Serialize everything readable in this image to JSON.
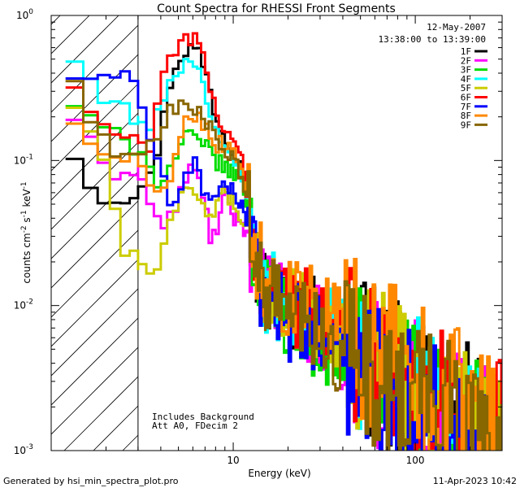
{
  "chart_data": {
    "type": "line",
    "title": "Count Spectra for RHESSI Front Segments",
    "xlabel": "Energy (keV)",
    "ylabel": "counts cm^-2 s^-1 keV^-1",
    "xscale": "log",
    "yscale": "log",
    "xlim": [
      1,
      300
    ],
    "ylim": [
      0.001,
      1
    ],
    "x_tick_labels": [
      "10",
      "100"
    ],
    "y_tick_labels": [
      {
        "base": "10",
        "exp": "0",
        "value": 1
      },
      {
        "base": "10",
        "exp": "-1",
        "value": 0.1
      },
      {
        "base": "10",
        "exp": "-2",
        "value": 0.01
      },
      {
        "base": "10",
        "exp": "-3",
        "value": 0.001
      }
    ],
    "date": "12-May-2007",
    "time_range": "13:38:00 to 13:39:00",
    "annotations": [
      "Includes Background",
      "Att A0, FDecim 2"
    ],
    "footer_left": "Generated by hsi_min_spectra_plot.pro",
    "footer_right": "11-Apr-2023 10:42",
    "excluded_region": {
      "x_max": 3
    },
    "series": [
      {
        "name": "1F",
        "color": "#000000",
        "key": [
          [
            1.2,
            0.14
          ],
          [
            1.5,
            0.085
          ],
          [
            2,
            0.052
          ],
          [
            3,
            0.062
          ],
          [
            3.5,
            0.075
          ],
          [
            4,
            0.15
          ],
          [
            4.5,
            0.35
          ],
          [
            5,
            0.5
          ],
          [
            5.5,
            0.58
          ],
          [
            6,
            0.6
          ],
          [
            6.5,
            0.55
          ],
          [
            7,
            0.42
          ],
          [
            7.5,
            0.3
          ],
          [
            8,
            0.2
          ],
          [
            9,
            0.15
          ],
          [
            10,
            0.12
          ],
          [
            11,
            0.1
          ],
          [
            12,
            0.05
          ],
          [
            13,
            0.02
          ],
          [
            15,
            0.013
          ],
          [
            20,
            0.01
          ],
          [
            30,
            0.008
          ],
          [
            40,
            0.006
          ],
          [
            60,
            0.004
          ],
          [
            80,
            0.003
          ],
          [
            100,
            0.0025
          ],
          [
            150,
            0.002
          ],
          [
            200,
            0.0016
          ],
          [
            250,
            0.0013
          ],
          [
            300,
            0.0012
          ]
        ]
      },
      {
        "name": "2F",
        "color": "#ff00ff",
        "key": [
          [
            1.2,
            0.25
          ],
          [
            1.5,
            0.16
          ],
          [
            2,
            0.08
          ],
          [
            3,
            0.09
          ],
          [
            3.5,
            0.05
          ],
          [
            4,
            0.035
          ],
          [
            4.5,
            0.04
          ],
          [
            5,
            0.05
          ],
          [
            5.5,
            0.08
          ],
          [
            6,
            0.09
          ],
          [
            6.5,
            0.07
          ],
          [
            7,
            0.05
          ],
          [
            7.5,
            0.03
          ],
          [
            8,
            0.03
          ],
          [
            9,
            0.06
          ],
          [
            10,
            0.04
          ],
          [
            11,
            0.04
          ],
          [
            12,
            0.03
          ],
          [
            13,
            0.02
          ],
          [
            15,
            0.012
          ],
          [
            20,
            0.009
          ],
          [
            30,
            0.007
          ],
          [
            40,
            0.005
          ],
          [
            60,
            0.0035
          ],
          [
            80,
            0.003
          ],
          [
            100,
            0.0025
          ],
          [
            150,
            0.002
          ],
          [
            200,
            0.0015
          ],
          [
            250,
            0.0012
          ],
          [
            300,
            0.0011
          ]
        ]
      },
      {
        "name": "3F",
        "color": "#00dd00",
        "key": [
          [
            1.2,
            0.3
          ],
          [
            1.5,
            0.2
          ],
          [
            2,
            0.16
          ],
          [
            3,
            0.12
          ],
          [
            3.5,
            0.1
          ],
          [
            4,
            0.06
          ],
          [
            4.5,
            0.09
          ],
          [
            5,
            0.12
          ],
          [
            5.5,
            0.14
          ],
          [
            6,
            0.15
          ],
          [
            6.5,
            0.13
          ],
          [
            7,
            0.12
          ],
          [
            7.5,
            0.12
          ],
          [
            8,
            0.1
          ],
          [
            9,
            0.09
          ],
          [
            10,
            0.08
          ],
          [
            11,
            0.08
          ],
          [
            12,
            0.05
          ],
          [
            13,
            0.02
          ],
          [
            15,
            0.012
          ],
          [
            20,
            0.009
          ],
          [
            30,
            0.006
          ],
          [
            40,
            0.005
          ],
          [
            60,
            0.0035
          ],
          [
            80,
            0.0028
          ],
          [
            100,
            0.0022
          ],
          [
            150,
            0.0018
          ],
          [
            200,
            0.0014
          ],
          [
            250,
            0.0012
          ],
          [
            300,
            0.001
          ]
        ]
      },
      {
        "name": "4F",
        "color": "#00ffff",
        "key": [
          [
            1.2,
            0.6
          ],
          [
            1.5,
            0.4
          ],
          [
            2,
            0.25
          ],
          [
            3,
            0.2
          ],
          [
            3.5,
            0.15
          ],
          [
            4,
            0.25
          ],
          [
            4.5,
            0.38
          ],
          [
            5,
            0.42
          ],
          [
            5.5,
            0.45
          ],
          [
            6,
            0.42
          ],
          [
            6.5,
            0.4
          ],
          [
            7,
            0.3
          ],
          [
            7.5,
            0.22
          ],
          [
            8,
            0.16
          ],
          [
            9,
            0.12
          ],
          [
            10,
            0.1
          ],
          [
            11,
            0.09
          ],
          [
            12,
            0.05
          ],
          [
            13,
            0.02
          ],
          [
            15,
            0.013
          ],
          [
            20,
            0.01
          ],
          [
            30,
            0.008
          ],
          [
            40,
            0.006
          ],
          [
            60,
            0.004
          ],
          [
            80,
            0.003
          ],
          [
            100,
            0.0024
          ],
          [
            150,
            0.0019
          ],
          [
            200,
            0.0015
          ],
          [
            250,
            0.0013
          ],
          [
            300,
            0.0012
          ]
        ]
      },
      {
        "name": "5F",
        "color": "#cccc00",
        "key": [
          [
            1.2,
            0.3
          ],
          [
            1.5,
            0.18
          ],
          [
            2,
            0.11
          ],
          [
            2.2,
            0.05
          ],
          [
            2.5,
            0.024
          ],
          [
            3,
            0.02
          ],
          [
            3.5,
            0.017
          ],
          [
            4,
            0.02
          ],
          [
            4.5,
            0.045
          ],
          [
            5,
            0.05
          ],
          [
            5.5,
            0.06
          ],
          [
            6,
            0.055
          ],
          [
            6.5,
            0.05
          ],
          [
            7,
            0.045
          ],
          [
            7.5,
            0.04
          ],
          [
            8,
            0.05
          ],
          [
            9,
            0.06
          ],
          [
            10,
            0.05
          ],
          [
            11,
            0.04
          ],
          [
            12,
            0.03
          ],
          [
            13,
            0.02
          ],
          [
            15,
            0.013
          ],
          [
            20,
            0.01
          ],
          [
            30,
            0.008
          ],
          [
            40,
            0.006
          ],
          [
            60,
            0.004
          ],
          [
            80,
            0.003
          ],
          [
            100,
            0.0024
          ],
          [
            150,
            0.0019
          ],
          [
            200,
            0.0015
          ],
          [
            250,
            0.0013
          ],
          [
            300,
            0.0012
          ]
        ]
      },
      {
        "name": "6F",
        "color": "#ff0000",
        "key": [
          [
            1.2,
            0.4
          ],
          [
            1.5,
            0.25
          ],
          [
            2,
            0.16
          ],
          [
            3,
            0.13
          ],
          [
            3.5,
            0.13
          ],
          [
            4,
            0.3
          ],
          [
            4.5,
            0.5
          ],
          [
            5,
            0.62
          ],
          [
            5.5,
            0.7
          ],
          [
            6,
            0.72
          ],
          [
            6.5,
            0.6
          ],
          [
            7,
            0.45
          ],
          [
            7.5,
            0.32
          ],
          [
            8,
            0.22
          ],
          [
            9,
            0.16
          ],
          [
            10,
            0.14
          ],
          [
            11,
            0.12
          ],
          [
            12,
            0.05
          ],
          [
            13,
            0.02
          ],
          [
            15,
            0.014
          ],
          [
            20,
            0.011
          ],
          [
            30,
            0.008
          ],
          [
            40,
            0.006
          ],
          [
            60,
            0.0045
          ],
          [
            80,
            0.0033
          ],
          [
            100,
            0.0026
          ],
          [
            150,
            0.002
          ],
          [
            200,
            0.0016
          ],
          [
            250,
            0.0013
          ],
          [
            300,
            0.0012
          ]
        ]
      },
      {
        "name": "7F",
        "color": "#0000ff",
        "key": [
          [
            1.2,
            0.35
          ],
          [
            1.5,
            0.37
          ],
          [
            2,
            0.4
          ],
          [
            2.5,
            0.38
          ],
          [
            3,
            0.3
          ],
          [
            3.5,
            0.13
          ],
          [
            4,
            0.1
          ],
          [
            4.5,
            0.05
          ],
          [
            5,
            0.06
          ],
          [
            5.5,
            0.08
          ],
          [
            6,
            0.1
          ],
          [
            6.5,
            0.08
          ],
          [
            7,
            0.06
          ],
          [
            7.5,
            0.05
          ],
          [
            8,
            0.06
          ],
          [
            9,
            0.07
          ],
          [
            10,
            0.06
          ],
          [
            11,
            0.05
          ],
          [
            12,
            0.03
          ],
          [
            13,
            0.02
          ],
          [
            15,
            0.011
          ],
          [
            20,
            0.008
          ],
          [
            30,
            0.006
          ],
          [
            40,
            0.0045
          ],
          [
            60,
            0.0033
          ],
          [
            80,
            0.0026
          ],
          [
            100,
            0.002
          ],
          [
            150,
            0.0016
          ],
          [
            200,
            0.0013
          ],
          [
            250,
            0.0011
          ],
          [
            300,
            0.001
          ]
        ]
      },
      {
        "name": "8F",
        "color": "#ff8800",
        "key": [
          [
            1.2,
            0.2
          ],
          [
            1.5,
            0.15
          ],
          [
            2,
            0.12
          ],
          [
            3,
            0.1
          ],
          [
            3.5,
            0.07
          ],
          [
            4,
            0.05
          ],
          [
            4.5,
            0.08
          ],
          [
            5,
            0.15
          ],
          [
            5.5,
            0.2
          ],
          [
            6,
            0.22
          ],
          [
            6.5,
            0.2
          ],
          [
            7,
            0.17
          ],
          [
            7.5,
            0.15
          ],
          [
            8,
            0.13
          ],
          [
            9,
            0.13
          ],
          [
            10,
            0.12
          ],
          [
            11,
            0.1
          ],
          [
            12,
            0.06
          ],
          [
            13,
            0.025
          ],
          [
            15,
            0.016
          ],
          [
            20,
            0.012
          ],
          [
            30,
            0.009
          ],
          [
            40,
            0.007
          ],
          [
            60,
            0.005
          ],
          [
            80,
            0.0038
          ],
          [
            100,
            0.003
          ],
          [
            150,
            0.0023
          ],
          [
            200,
            0.0018
          ],
          [
            250,
            0.0015
          ],
          [
            300,
            0.0013
          ]
        ]
      },
      {
        "name": "9F",
        "color": "#886600",
        "key": [
          [
            1.2,
            0.45
          ],
          [
            1.5,
            0.25
          ],
          [
            2,
            0.13
          ],
          [
            3,
            0.1
          ],
          [
            3.5,
            0.12
          ],
          [
            4,
            0.16
          ],
          [
            4.5,
            0.22
          ],
          [
            5,
            0.24
          ],
          [
            5.5,
            0.25
          ],
          [
            6,
            0.24
          ],
          [
            6.5,
            0.22
          ],
          [
            7,
            0.2
          ],
          [
            7.5,
            0.17
          ],
          [
            8,
            0.13
          ],
          [
            9,
            0.12
          ],
          [
            10,
            0.1
          ],
          [
            11,
            0.08
          ],
          [
            12,
            0.05
          ],
          [
            13,
            0.02
          ],
          [
            15,
            0.012
          ],
          [
            20,
            0.009
          ],
          [
            30,
            0.006
          ],
          [
            40,
            0.0045
          ],
          [
            60,
            0.0035
          ],
          [
            80,
            0.0027
          ],
          [
            100,
            0.0022
          ],
          [
            150,
            0.0017
          ],
          [
            200,
            0.0014
          ],
          [
            250,
            0.0012
          ],
          [
            300,
            0.001
          ]
        ]
      }
    ]
  }
}
